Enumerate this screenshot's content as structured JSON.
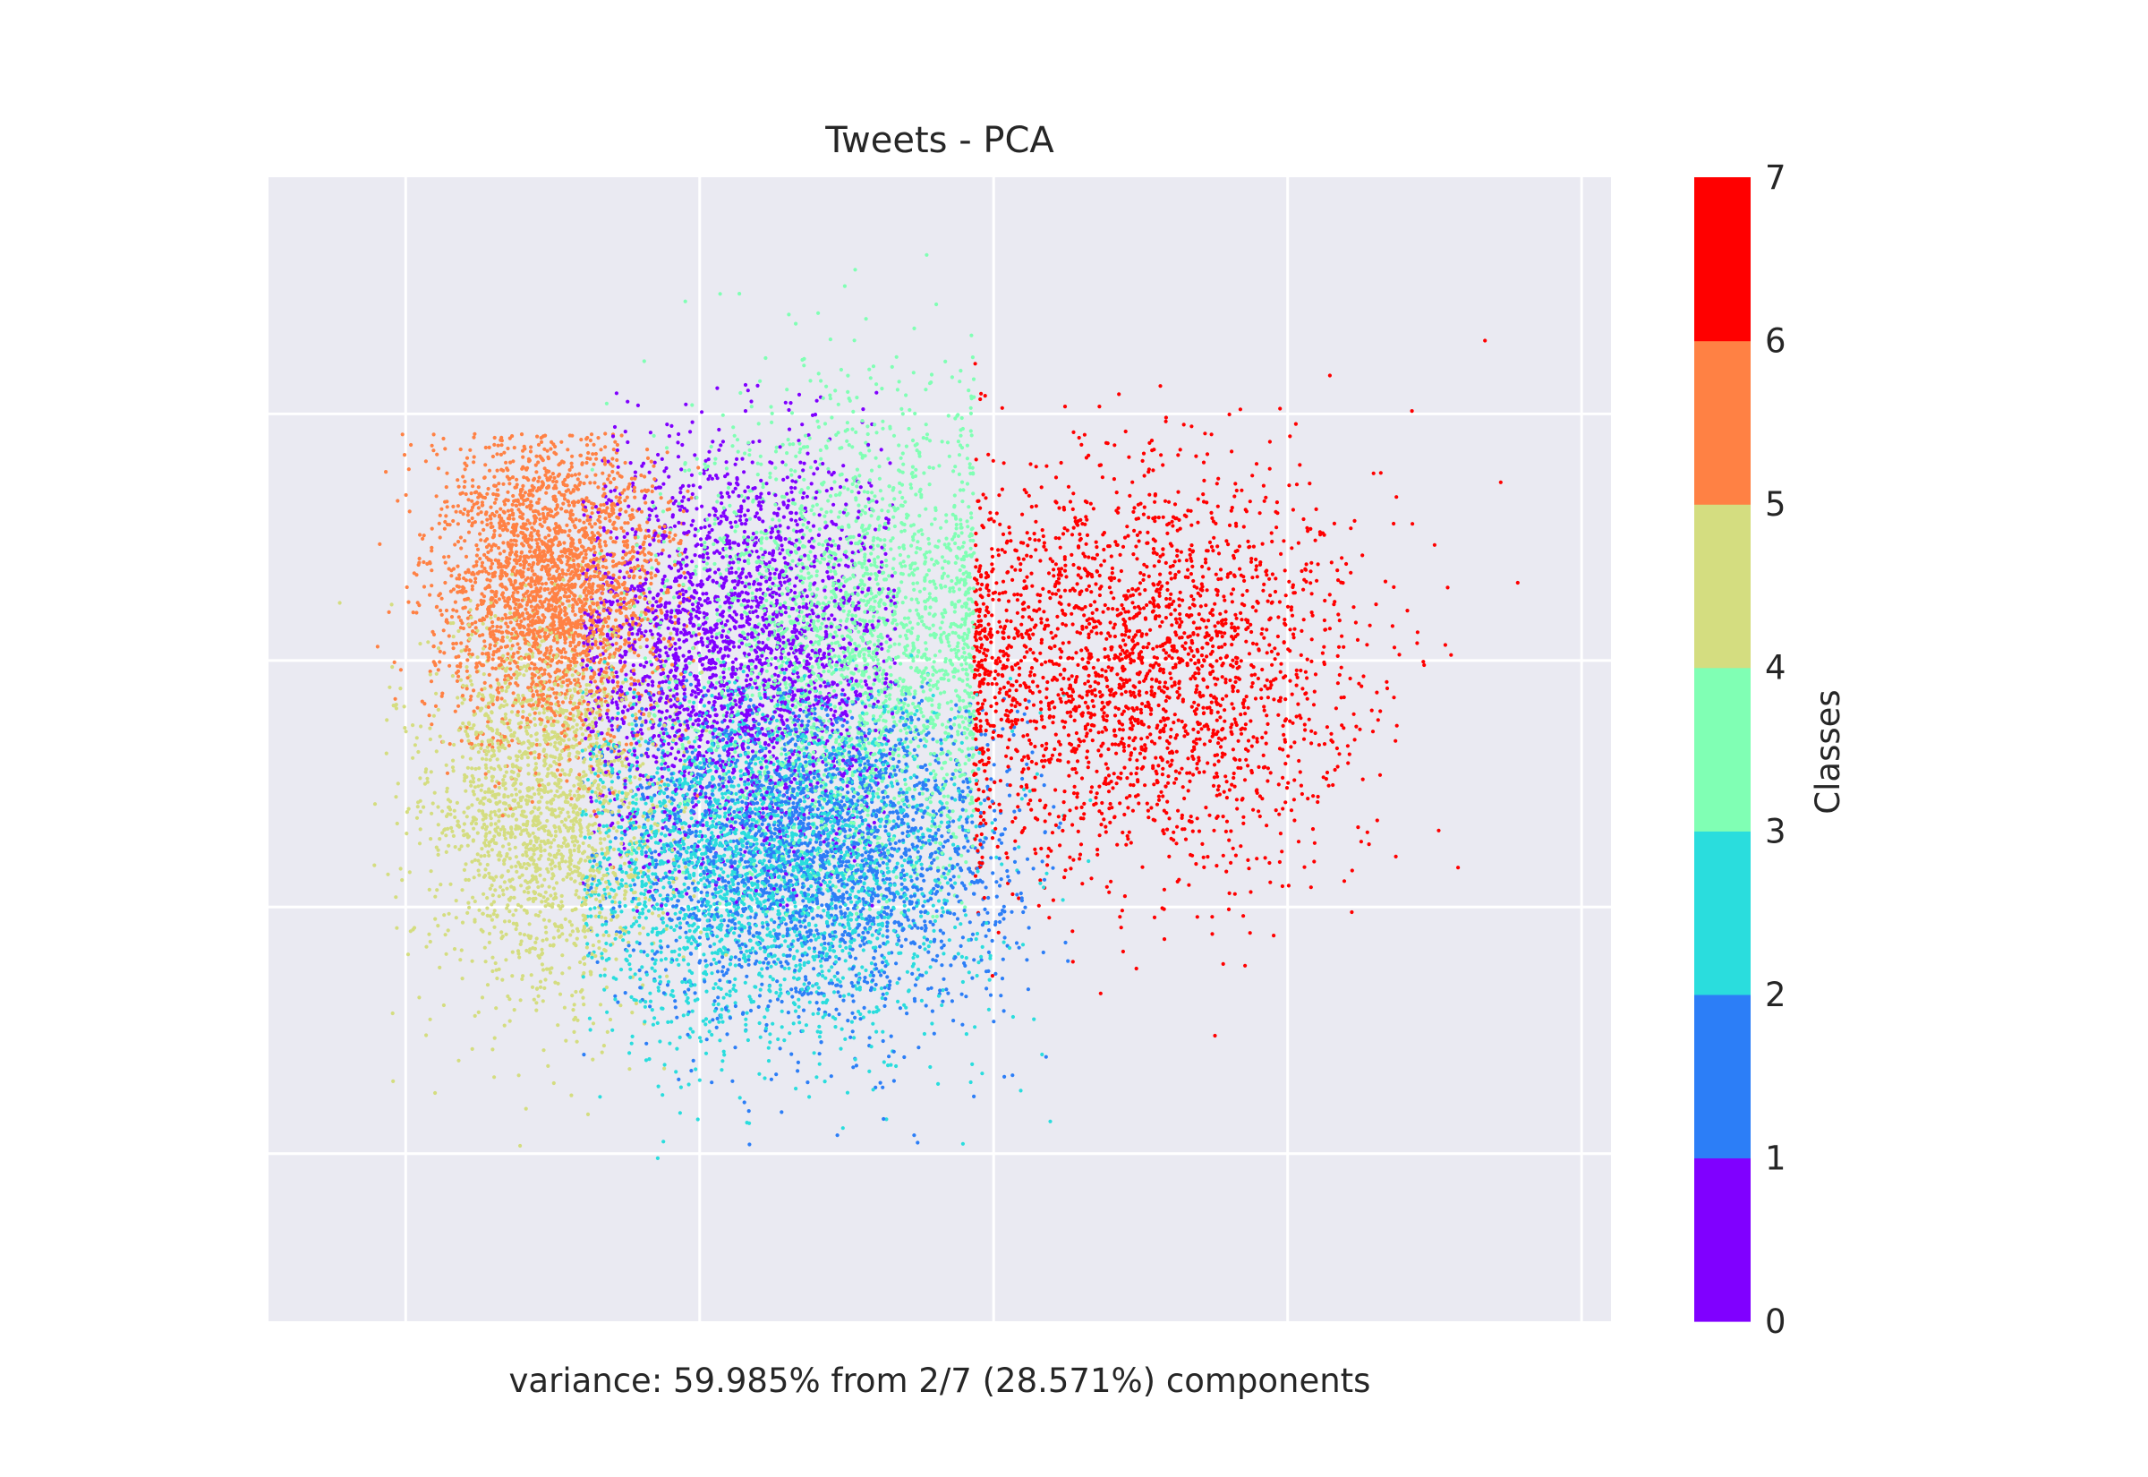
{
  "chart_data": {
    "type": "scatter",
    "title": "Tweets - PCA",
    "xlabel": "variance: 59.985% from 2/7 (28.571%) components",
    "ylabel": "",
    "xlim": [
      -3.4,
      10.3
    ],
    "ylim": [
      -4.7,
      6.9
    ],
    "x_gridlines": [
      -2,
      1,
      4,
      7,
      10
    ],
    "y_gridlines": [
      -3,
      -0.5,
      2,
      4.5,
      7
    ],
    "tick_labels_visible": false,
    "grid": true,
    "plot_background": "#eaeaf2",
    "colorbar": {
      "label": "Classes",
      "placement": "right",
      "ticks": [
        "0",
        "1",
        "2",
        "3",
        "4",
        "5",
        "6",
        "7"
      ],
      "colors": [
        "#8000ff",
        "#2c7ef7",
        "#2adddd",
        "#80ffb4",
        "#d4dd80",
        "#ff8144",
        "#ff0000"
      ]
    },
    "series": [
      {
        "class": 0,
        "color": "#8000ff",
        "count": 2600,
        "center": [
          1.3,
          2.1
        ],
        "spread": [
          1.0,
          1.05
        ],
        "range_x": [
          -0.2,
          3.0
        ],
        "range_y": [
          -0.6,
          4.8
        ]
      },
      {
        "class": 1,
        "color": "#2c7ef7",
        "count": 2600,
        "center": [
          2.2,
          0.1
        ],
        "spread": [
          1.0,
          0.85
        ],
        "range_x": [
          -0.2,
          4.8
        ],
        "range_y": [
          -3.4,
          1.8
        ]
      },
      {
        "class": 2,
        "color": "#2adddd",
        "count": 2600,
        "center": [
          1.6,
          -0.1
        ],
        "spread": [
          1.1,
          0.9
        ],
        "range_x": [
          -0.2,
          5.0
        ],
        "range_y": [
          -3.6,
          2.1
        ]
      },
      {
        "class": 3,
        "color": "#80ffb4",
        "count": 2600,
        "center": [
          2.6,
          2.2
        ],
        "spread": [
          0.9,
          1.2
        ],
        "range_x": [
          -0.2,
          3.8
        ],
        "range_y": [
          -0.6,
          6.2
        ]
      },
      {
        "class": 4,
        "color": "#d4dd80",
        "count": 2000,
        "center": [
          -0.6,
          0.5
        ],
        "spread": [
          0.6,
          1.0
        ],
        "range_x": [
          -2.7,
          1.5
        ],
        "range_y": [
          -3.5,
          3.1
        ]
      },
      {
        "class": 5,
        "color": "#ff8144",
        "count": 2600,
        "center": [
          -0.5,
          2.8
        ],
        "spread": [
          0.6,
          0.8
        ],
        "range_x": [
          -2.3,
          1.0
        ],
        "range_y": [
          -0.7,
          4.3
        ]
      },
      {
        "class": 6,
        "color": "#ff0000",
        "count": 2500,
        "center": [
          5.4,
          1.9
        ],
        "spread": [
          1.15,
          1.05
        ],
        "range_x": [
          3.8,
          10.0
        ],
        "range_y": [
          -4.2,
          5.6
        ]
      }
    ]
  }
}
